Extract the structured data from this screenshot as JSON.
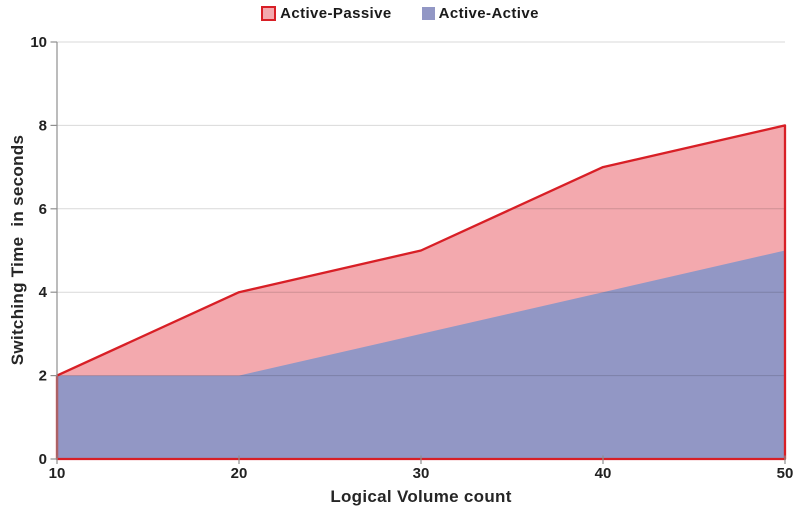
{
  "chart_data": {
    "type": "area",
    "title": "",
    "xlabel": "Logical Volume count",
    "ylabel": "Switching Time  in seconds",
    "x": [
      10,
      20,
      30,
      40,
      50
    ],
    "xlim": [
      10,
      50
    ],
    "ylim": [
      0,
      10
    ],
    "xticks": [
      10,
      20,
      30,
      40,
      50
    ],
    "yticks": [
      0,
      2,
      4,
      6,
      8,
      10
    ],
    "grid": "horizontal",
    "legend_position": "top-center",
    "series": [
      {
        "name": "Active-Passive",
        "values": [
          2,
          4,
          5,
          7,
          8
        ],
        "fill": "#F3A9AE",
        "line": "#D81F26"
      },
      {
        "name": "Active-Active",
        "values": [
          2,
          2,
          3,
          4,
          5
        ],
        "fill": "#9297C5",
        "line": "none"
      }
    ],
    "colors": {
      "gridline": "rgba(0,0,0,0.15)",
      "axis": "#8F8F8F",
      "tick_label": "#212121",
      "background": "#FFFFFF"
    }
  }
}
